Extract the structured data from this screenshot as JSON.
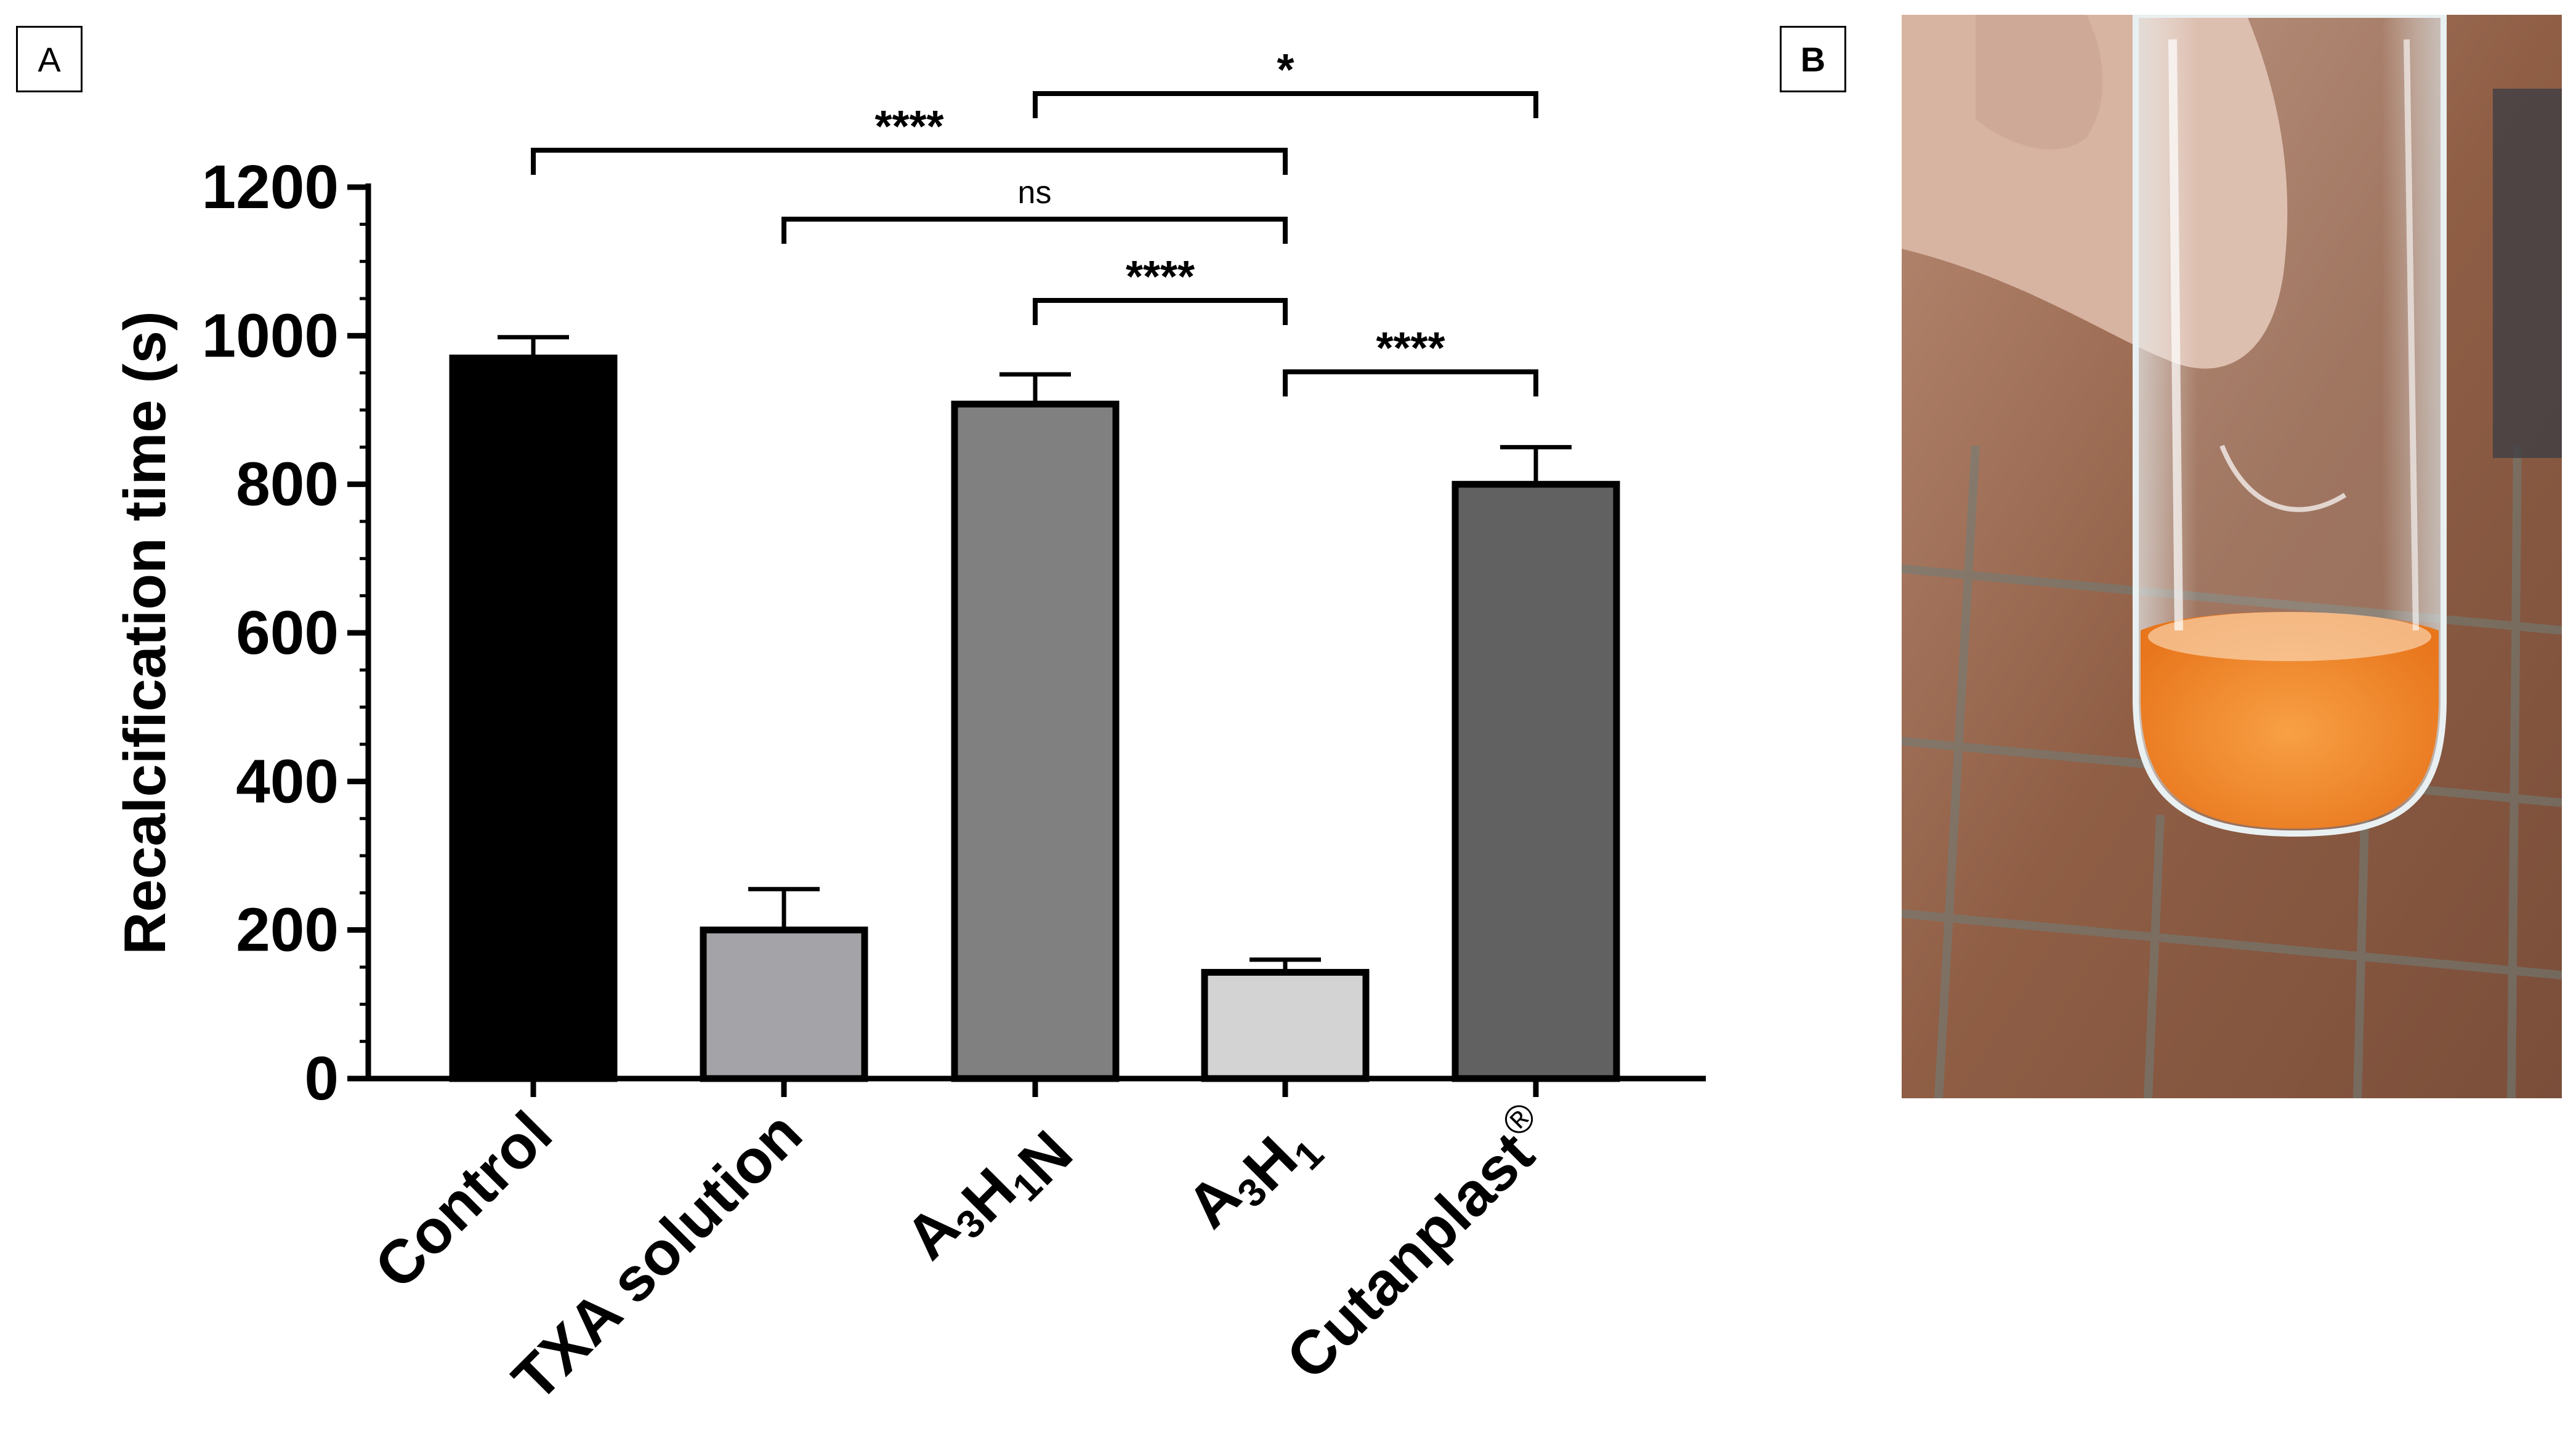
{
  "panels": {
    "a": "A",
    "b": "B"
  },
  "chart_data": {
    "type": "bar",
    "categories": [
      "Control",
      "TXA solution",
      "A3H1N",
      "A3H1",
      "Cutanplast®"
    ],
    "category_parts": [
      [
        {
          "t": "Control",
          "s": "n"
        }
      ],
      [
        {
          "t": "TXA solution",
          "s": "n"
        }
      ],
      [
        {
          "t": "A",
          "s": "n"
        },
        {
          "t": "3",
          "s": "sub"
        },
        {
          "t": "H",
          "s": "n"
        },
        {
          "t": "1",
          "s": "sub"
        },
        {
          "t": "N",
          "s": "n"
        }
      ],
      [
        {
          "t": "A",
          "s": "n"
        },
        {
          "t": "3",
          "s": "sub"
        },
        {
          "t": "H",
          "s": "n"
        },
        {
          "t": "1",
          "s": "sub"
        }
      ],
      [
        {
          "t": "Cutanplast",
          "s": "n"
        },
        {
          "t": "®",
          "s": "sup"
        }
      ]
    ],
    "values": [
      970,
      200,
      908,
      143,
      800
    ],
    "errors": [
      28,
      55,
      40,
      17,
      50
    ],
    "colors": [
      "#000000",
      "#a3a3a8",
      "#808080",
      "#d3d3d3",
      "#616161"
    ],
    "ylabel": "Recalcification time (s)",
    "ylim": [
      0,
      1200
    ],
    "yticks": [
      0,
      200,
      400,
      600,
      800,
      1000,
      1200
    ],
    "significance": [
      {
        "from": 2,
        "to": 4,
        "label": "*",
        "level": 5
      },
      {
        "from": 0,
        "to": 3,
        "label": "****",
        "level": 4
      },
      {
        "from": 1,
        "to": 3,
        "label": "ns",
        "level": 3
      },
      {
        "from": 2,
        "to": 3,
        "label": "****",
        "level": 2
      },
      {
        "from": 3,
        "to": 4,
        "label": "****",
        "level": 1
      }
    ]
  },
  "photo": {
    "subject": "test tube held between fingers with orange clotted plasma at the bottom",
    "colors": {
      "background": "#8a5a40",
      "liquid": "#f08a28",
      "finger": "#d7b4a2",
      "tile_line": "#6f7f7a"
    }
  }
}
